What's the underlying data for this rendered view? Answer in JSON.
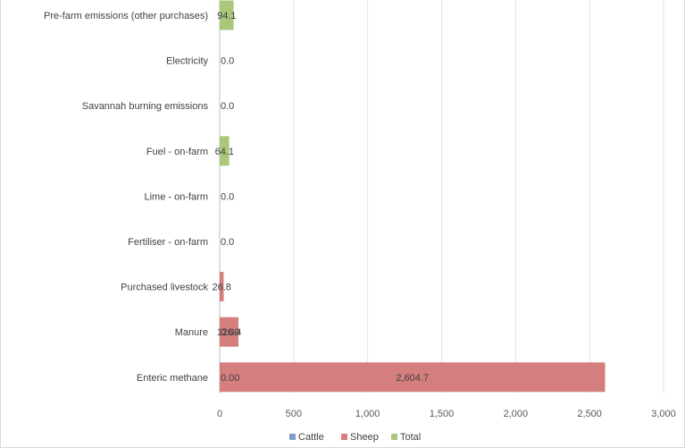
{
  "chart_data": {
    "type": "bar",
    "orientation": "horizontal",
    "categories": [
      "Pre-farm emissions (other purchases)",
      "Electricity",
      "Savannah burning emissions",
      "Fuel - on-farm",
      "Lime - on-farm",
      "Fertiliser - on-farm",
      "Purchased livestock",
      "Manure",
      "Enteric methane"
    ],
    "series": [
      {
        "name": "Cattle",
        "color": "#7f9fc9",
        "values": [
          0,
          0,
          0,
          0,
          0,
          0,
          0,
          0,
          0
        ],
        "labels": [
          "",
          "",
          "",
          "",
          "",
          "",
          "",
          "0.00",
          "0.00"
        ]
      },
      {
        "name": "Sheep",
        "color": "#d47e7e",
        "values": [
          0,
          0,
          0,
          0,
          0,
          0,
          26.8,
          126.4,
          2604.7
        ],
        "labels": [
          "",
          "",
          "",
          "",
          "",
          "",
          "26.8",
          "126.4",
          "2,604.7"
        ]
      },
      {
        "name": "Total",
        "color": "#a9c87a",
        "values": [
          94.1,
          0,
          0,
          64.1,
          0,
          0,
          0,
          0,
          0
        ],
        "labels": [
          "94.1",
          "0.0",
          "0.0",
          "64.1",
          "0.0",
          "0.0",
          "",
          "",
          ""
        ]
      }
    ],
    "xlim": [
      0,
      3000
    ],
    "xticks": [
      0,
      500,
      1000,
      1500,
      2000,
      2500,
      3000
    ],
    "xtick_labels": [
      "0",
      "500",
      "1,000",
      "1,500",
      "2,000",
      "2,500",
      "3,000"
    ],
    "grid": true,
    "legend_position": "bottom"
  }
}
